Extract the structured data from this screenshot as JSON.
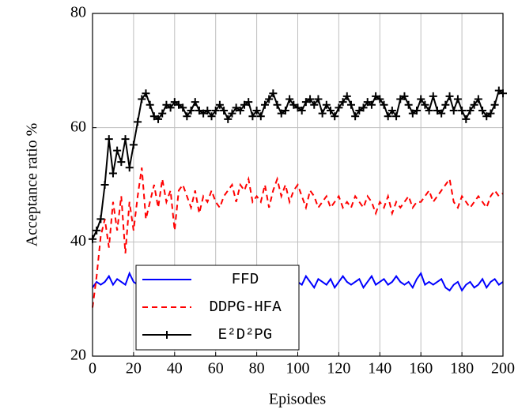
{
  "chart_data": {
    "type": "line",
    "xlabel": "Episodes",
    "ylabel": "Acceptance ratio %",
    "x": [
      0,
      2,
      4,
      6,
      8,
      10,
      12,
      14,
      16,
      18,
      20,
      22,
      24,
      26,
      28,
      30,
      32,
      34,
      36,
      38,
      40,
      42,
      44,
      46,
      48,
      50,
      52,
      54,
      56,
      58,
      60,
      62,
      64,
      66,
      68,
      70,
      72,
      74,
      76,
      78,
      80,
      82,
      84,
      86,
      88,
      90,
      92,
      94,
      96,
      98,
      100,
      102,
      104,
      106,
      108,
      110,
      112,
      114,
      116,
      118,
      120,
      122,
      124,
      126,
      128,
      130,
      132,
      134,
      136,
      138,
      140,
      142,
      144,
      146,
      148,
      150,
      152,
      154,
      156,
      158,
      160,
      162,
      164,
      166,
      168,
      170,
      172,
      174,
      176,
      178,
      180,
      182,
      184,
      186,
      188,
      190,
      192,
      194,
      196,
      198,
      200
    ],
    "series": [
      {
        "name": "FFD",
        "color": "#0000ff",
        "dash": "solid",
        "marker": "none",
        "values": [
          32,
          33,
          32.5,
          33,
          34,
          32.5,
          33.5,
          33,
          32.5,
          34.5,
          33,
          32.5,
          33,
          33.5,
          32.5,
          33,
          34,
          33,
          32.5,
          33,
          33.5,
          32,
          33,
          34,
          32.5,
          33,
          33.5,
          33,
          32.5,
          33,
          32,
          33,
          33.5,
          32.5,
          33,
          34,
          32.5,
          33,
          33,
          32,
          33.5,
          33,
          32.5,
          34,
          33,
          32,
          33.5,
          33,
          32.5,
          33.5,
          33,
          32.5,
          34,
          33,
          32,
          33.5,
          33,
          32.5,
          33.5,
          32,
          33,
          34,
          33,
          32.5,
          33,
          33.5,
          32,
          33,
          34,
          32.5,
          33,
          33.5,
          32.5,
          33,
          34,
          33,
          32.5,
          33,
          32,
          33.5,
          34.5,
          32.5,
          33,
          32.5,
          33,
          33.5,
          32,
          31.5,
          32.5,
          33,
          31.5,
          32.5,
          33,
          32,
          32.5,
          33.5,
          32,
          33,
          33.5,
          32.5,
          33
        ]
      },
      {
        "name": "DDPG-HFA",
        "color": "#ff0000",
        "dash": "dashed",
        "marker": "none",
        "values": [
          28.5,
          34,
          41,
          44,
          39,
          47,
          42,
          48,
          38,
          47,
          42,
          48,
          53,
          44,
          47,
          50,
          46,
          51,
          47,
          49,
          42,
          49,
          50,
          48,
          46,
          49,
          45,
          48,
          47,
          49,
          47,
          46,
          48,
          49,
          50,
          47,
          50,
          49,
          51,
          47,
          48,
          47,
          50,
          46,
          49,
          51,
          48,
          50,
          47,
          49,
          50,
          48,
          46,
          49,
          48,
          46,
          47,
          48,
          46,
          47,
          48,
          46,
          47,
          46,
          48,
          47,
          46,
          48,
          47,
          45,
          47,
          46,
          48,
          45,
          47,
          46,
          47,
          48,
          46,
          47,
          47,
          48,
          49,
          47,
          48,
          49,
          50,
          51,
          47,
          46,
          48,
          47,
          46,
          47,
          48,
          47,
          46,
          48,
          49,
          48,
          48.5
        ]
      },
      {
        "name": "E²D²PG",
        "color": "#000000",
        "dash": "solid",
        "marker": "plus",
        "values": [
          40.5,
          42,
          44,
          50,
          58,
          52,
          56,
          54,
          58,
          53,
          57,
          61,
          65,
          66,
          64,
          62,
          61.5,
          62.5,
          64,
          63.5,
          64.5,
          64,
          63.5,
          62,
          63,
          64.5,
          63,
          62.5,
          63,
          62,
          63,
          64,
          63,
          61.5,
          62.5,
          63.5,
          63,
          64,
          64.5,
          62,
          63,
          62,
          64,
          65,
          66,
          64,
          62.5,
          63,
          65,
          64,
          63.5,
          63,
          64.5,
          65,
          64,
          65,
          62.5,
          64,
          63,
          62,
          63.5,
          64.5,
          65.5,
          64,
          62,
          63,
          63.5,
          64.5,
          64,
          65.5,
          65,
          64,
          62,
          63,
          62,
          65,
          65.5,
          64,
          62.5,
          63,
          65,
          64,
          63,
          65.5,
          63,
          62.5,
          64,
          65.5,
          63,
          65,
          63,
          61.5,
          63,
          64,
          65,
          63,
          62,
          62.5,
          64,
          66.5,
          66
        ]
      }
    ],
    "xlim": [
      0,
      200
    ],
    "xticks": [
      0,
      20,
      40,
      60,
      80,
      100,
      120,
      140,
      160,
      180,
      200
    ],
    "ylim": [
      20,
      80
    ],
    "yticks": [
      20,
      40,
      60,
      80
    ],
    "grid": true,
    "legend": "lower left"
  }
}
